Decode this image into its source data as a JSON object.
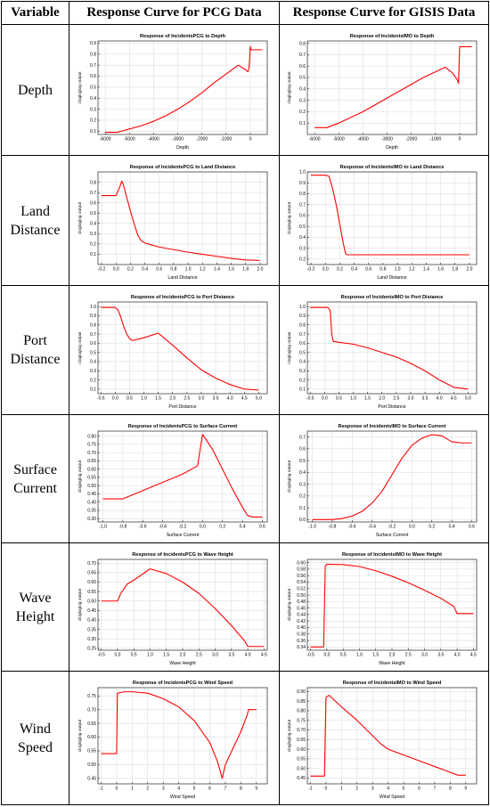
{
  "header": {
    "variable": "Variable",
    "pcg": "Response Curve for PCG Data",
    "gisis": "Response Curve for GISIS Data"
  },
  "ylabel": "clogloglog output",
  "rows": [
    {
      "label": "Depth",
      "pcg": {
        "title": "Response of IncidentsPCG to Depth",
        "xlabel": "Depth",
        "xlim": [
          -6300,
          700
        ],
        "ylim": [
          0.07,
          0.92
        ],
        "xticks": [
          -6000,
          -5000,
          -4000,
          -3000,
          -2000,
          -1000,
          0
        ],
        "yticks": [
          0.1,
          0.2,
          0.3,
          0.4,
          0.5,
          0.6,
          0.7,
          0.8,
          0.9
        ],
        "x": [
          -6000,
          -5500,
          -5000,
          -4500,
          -4000,
          -3500,
          -3000,
          -2500,
          -2000,
          -1500,
          -1000,
          -500,
          -200,
          -100,
          -50,
          0,
          30,
          80,
          200,
          500
        ],
        "y": [
          0.09,
          0.09,
          0.12,
          0.15,
          0.19,
          0.24,
          0.3,
          0.37,
          0.45,
          0.54,
          0.62,
          0.7,
          0.66,
          0.64,
          0.68,
          0.87,
          0.84,
          0.84,
          0.84,
          0.84
        ]
      },
      "gisis": {
        "title": "Response of IncidentsIMO to Depth",
        "xlabel": "Depth",
        "xlim": [
          -6300,
          700
        ],
        "ylim": [
          0.0,
          0.82
        ],
        "xticks": [
          -6000,
          -5000,
          -4000,
          -3000,
          -2000,
          -1000,
          0
        ],
        "yticks": [
          0.1,
          0.2,
          0.3,
          0.4,
          0.5,
          0.6,
          0.7,
          0.8
        ],
        "x": [
          -6000,
          -5500,
          -5000,
          -4500,
          -4000,
          -3500,
          -3000,
          -2500,
          -2000,
          -1500,
          -1000,
          -600,
          -300,
          -100,
          -50,
          0,
          30,
          100,
          200,
          500
        ],
        "y": [
          0.06,
          0.06,
          0.1,
          0.15,
          0.2,
          0.26,
          0.32,
          0.38,
          0.44,
          0.5,
          0.55,
          0.59,
          0.54,
          0.48,
          0.45,
          0.77,
          0.77,
          0.77,
          0.77,
          0.77
        ]
      }
    },
    {
      "label": "Land Distance",
      "pcg": {
        "title": "Response of IncidentsPCG to Land Distance",
        "xlabel": "Land Distance",
        "xlim": [
          -0.25,
          2.1
        ],
        "ylim": [
          0.0,
          0.9
        ],
        "xticks": [
          -0.2,
          0.0,
          0.2,
          0.4,
          0.6,
          0.8,
          1.0,
          1.2,
          1.4,
          1.6,
          1.8,
          2.0
        ],
        "yticks": [
          0.1,
          0.2,
          0.3,
          0.4,
          0.5,
          0.6,
          0.7,
          0.8
        ],
        "x": [
          -0.2,
          0.0,
          0.05,
          0.08,
          0.1,
          0.15,
          0.2,
          0.25,
          0.3,
          0.35,
          0.4,
          0.5,
          0.6,
          0.8,
          1.0,
          1.2,
          1.4,
          1.6,
          1.8,
          2.0
        ],
        "y": [
          0.67,
          0.67,
          0.75,
          0.81,
          0.78,
          0.65,
          0.52,
          0.4,
          0.29,
          0.23,
          0.21,
          0.19,
          0.17,
          0.145,
          0.12,
          0.1,
          0.08,
          0.06,
          0.045,
          0.04
        ]
      },
      "gisis": {
        "title": "Response of IncidentsIMO to Land Distance",
        "xlabel": "Land Distance",
        "xlim": [
          -0.25,
          2.1
        ],
        "ylim": [
          0.15,
          1.0
        ],
        "xticks": [
          -0.2,
          0.0,
          0.2,
          0.4,
          0.6,
          0.8,
          1.0,
          1.2,
          1.4,
          1.6,
          1.8,
          2.0
        ],
        "yticks": [
          0.2,
          0.3,
          0.4,
          0.5,
          0.6,
          0.7,
          0.8,
          0.9,
          1.0
        ],
        "x": [
          -0.2,
          0.0,
          0.05,
          0.1,
          0.15,
          0.2,
          0.25,
          0.28,
          0.3,
          0.5,
          1.0,
          1.5,
          2.0
        ],
        "y": [
          0.97,
          0.97,
          0.96,
          0.85,
          0.7,
          0.52,
          0.34,
          0.25,
          0.24,
          0.24,
          0.24,
          0.24,
          0.24
        ]
      }
    },
    {
      "label": "Port Distance",
      "pcg": {
        "title": "Response of IncidentsPCG to Port Distance",
        "xlabel": "Port Distance",
        "xlim": [
          -0.6,
          5.3
        ],
        "ylim": [
          0.05,
          1.05
        ],
        "xticks": [
          -0.5,
          0.0,
          0.5,
          1.0,
          1.5,
          2.0,
          2.5,
          3.0,
          3.5,
          4.0,
          4.5,
          5.0
        ],
        "yticks": [
          0.1,
          0.2,
          0.3,
          0.4,
          0.5,
          0.6,
          0.7,
          0.8,
          0.9,
          1.0
        ],
        "x": [
          -0.5,
          0.0,
          0.1,
          0.2,
          0.3,
          0.4,
          0.5,
          0.6,
          1.0,
          1.5,
          2.0,
          2.5,
          3.0,
          3.5,
          4.0,
          4.5,
          5.0
        ],
        "y": [
          0.99,
          0.99,
          0.96,
          0.88,
          0.78,
          0.7,
          0.65,
          0.63,
          0.66,
          0.71,
          0.58,
          0.44,
          0.31,
          0.22,
          0.15,
          0.1,
          0.09
        ]
      },
      "gisis": {
        "title": "Response of IncidentsIMO to Port Distance",
        "xlabel": "Port Distance",
        "xlim": [
          -0.6,
          5.3
        ],
        "ylim": [
          0.05,
          1.05
        ],
        "xticks": [
          -0.5,
          0.0,
          0.5,
          1.0,
          1.5,
          2.0,
          2.5,
          3.0,
          3.5,
          4.0,
          4.5,
          5.0
        ],
        "yticks": [
          0.1,
          0.2,
          0.3,
          0.4,
          0.5,
          0.6,
          0.7,
          0.8,
          0.9,
          1.0
        ],
        "x": [
          -0.5,
          0.0,
          0.1,
          0.15,
          0.2,
          0.25,
          0.3,
          0.5,
          1.0,
          1.5,
          2.0,
          2.5,
          3.0,
          3.5,
          4.0,
          4.5,
          5.0
        ],
        "y": [
          0.99,
          0.99,
          0.99,
          0.98,
          0.95,
          0.7,
          0.62,
          0.61,
          0.59,
          0.55,
          0.5,
          0.45,
          0.38,
          0.3,
          0.2,
          0.12,
          0.1
        ]
      }
    },
    {
      "label": "Surface Current",
      "pcg": {
        "title": "Response of IncidentsPCG to Surface Current",
        "xlabel": "Surface Current",
        "xlim": [
          -1.05,
          0.65
        ],
        "ylim": [
          0.28,
          0.83
        ],
        "xticks": [
          -1.0,
          -0.8,
          -0.6,
          -0.4,
          -0.2,
          0.0,
          0.2,
          0.4,
          0.6
        ],
        "yticks": [
          0.3,
          0.35,
          0.4,
          0.45,
          0.5,
          0.55,
          0.6,
          0.65,
          0.7,
          0.75,
          0.8
        ],
        "x": [
          -1.0,
          -0.8,
          -0.6,
          -0.4,
          -0.2,
          -0.05,
          0.0,
          0.1,
          0.2,
          0.3,
          0.4,
          0.45,
          0.5,
          0.6
        ],
        "y": [
          0.42,
          0.42,
          0.47,
          0.52,
          0.57,
          0.62,
          0.81,
          0.72,
          0.6,
          0.48,
          0.37,
          0.32,
          0.31,
          0.31
        ]
      },
      "gisis": {
        "title": "Response of IncidentsIMO to Surface Current",
        "xlabel": "Surface Current",
        "xlim": [
          -1.05,
          0.65
        ],
        "ylim": [
          -0.02,
          0.75
        ],
        "xticks": [
          -1.0,
          -0.8,
          -0.6,
          -0.4,
          -0.2,
          0.0,
          0.2,
          0.4,
          0.6
        ],
        "yticks": [
          0.0,
          0.1,
          0.2,
          0.3,
          0.4,
          0.5,
          0.6,
          0.7
        ],
        "x": [
          -1.0,
          -0.8,
          -0.7,
          -0.6,
          -0.5,
          -0.4,
          -0.3,
          -0.2,
          -0.1,
          0.0,
          0.1,
          0.2,
          0.3,
          0.4,
          0.5,
          0.6
        ],
        "y": [
          0.0,
          0.0,
          0.01,
          0.03,
          0.07,
          0.14,
          0.24,
          0.38,
          0.52,
          0.63,
          0.69,
          0.72,
          0.71,
          0.66,
          0.65,
          0.65
        ]
      }
    },
    {
      "label": "Wave Height",
      "pcg": {
        "title": "Response of IncidentsPCG to Wave Height",
        "xlabel": "Wave Height",
        "xlim": [
          -0.6,
          4.6
        ],
        "ylim": [
          0.24,
          0.72
        ],
        "xticks": [
          -0.5,
          0.0,
          0.5,
          1.0,
          1.5,
          2.0,
          2.5,
          3.0,
          3.5,
          4.0,
          4.5
        ],
        "yticks": [
          0.25,
          0.3,
          0.35,
          0.4,
          0.45,
          0.5,
          0.55,
          0.6,
          0.65,
          0.7
        ],
        "x": [
          -0.5,
          0.0,
          0.1,
          0.3,
          0.5,
          1.0,
          1.5,
          2.0,
          2.5,
          3.0,
          3.5,
          3.9,
          4.0,
          4.5
        ],
        "y": [
          0.5,
          0.5,
          0.54,
          0.59,
          0.61,
          0.67,
          0.645,
          0.6,
          0.54,
          0.46,
          0.37,
          0.29,
          0.26,
          0.26
        ]
      },
      "gisis": {
        "title": "Response of IncidentsIMO to Wave Height",
        "xlabel": "Wave Height",
        "xlim": [
          -0.6,
          4.6
        ],
        "ylim": [
          0.33,
          0.61
        ],
        "xticks": [
          -0.5,
          0.0,
          0.5,
          1.0,
          1.5,
          2.0,
          2.5,
          3.0,
          3.5,
          4.0,
          4.5
        ],
        "yticks": [
          0.34,
          0.36,
          0.38,
          0.4,
          0.42,
          0.44,
          0.46,
          0.48,
          0.5,
          0.52,
          0.54,
          0.56,
          0.58,
          0.6
        ],
        "x": [
          -0.5,
          -0.1,
          -0.05,
          0.0,
          0.5,
          1.0,
          1.5,
          2.0,
          2.5,
          3.0,
          3.5,
          3.9,
          4.0,
          4.5
        ],
        "y": [
          0.34,
          0.34,
          0.59,
          0.595,
          0.594,
          0.588,
          0.575,
          0.558,
          0.538,
          0.515,
          0.49,
          0.465,
          0.443,
          0.443
        ]
      }
    },
    {
      "label": "Wind Speed",
      "pcg": {
        "title": "Response of IncidentsPCG to Wind Speed",
        "xlabel": "Wind Speed",
        "xlim": [
          -1.2,
          9.7
        ],
        "ylim": [
          0.43,
          0.78
        ],
        "xticks": [
          -1,
          0,
          1,
          2,
          3,
          4,
          5,
          6,
          7,
          8,
          9
        ],
        "yticks": [
          0.45,
          0.5,
          0.55,
          0.6,
          0.65,
          0.7,
          0.75
        ],
        "x": [
          -1,
          0,
          0.05,
          0.5,
          1,
          2,
          3,
          4,
          5,
          6,
          6.5,
          6.8,
          7,
          7.5,
          8,
          8.4,
          8.5,
          9
        ],
        "y": [
          0.54,
          0.54,
          0.76,
          0.765,
          0.765,
          0.76,
          0.74,
          0.71,
          0.66,
          0.58,
          0.51,
          0.45,
          0.5,
          0.56,
          0.62,
          0.68,
          0.7,
          0.7
        ]
      },
      "gisis": {
        "title": "Response of IncidentsIMO to Wind Speed",
        "xlabel": "Wind Speed",
        "xlim": [
          -1.2,
          9.7
        ],
        "ylim": [
          0.42,
          0.92
        ],
        "xticks": [
          -1,
          0,
          1,
          2,
          3,
          4,
          5,
          6,
          7,
          8,
          9
        ],
        "yticks": [
          0.45,
          0.5,
          0.55,
          0.6,
          0.65,
          0.7,
          0.75,
          0.8,
          0.85,
          0.9
        ],
        "x": [
          -1,
          -0.1,
          0.0,
          0.2,
          1,
          2,
          3,
          3.5,
          4,
          5,
          6,
          7,
          8,
          8.5,
          9
        ],
        "y": [
          0.46,
          0.46,
          0.87,
          0.88,
          0.82,
          0.75,
          0.67,
          0.63,
          0.6,
          0.57,
          0.54,
          0.51,
          0.48,
          0.465,
          0.465
        ]
      }
    }
  ],
  "colors": {
    "curve": "#ff0000",
    "grid": "#d9d9d9",
    "axis": "#000000"
  }
}
